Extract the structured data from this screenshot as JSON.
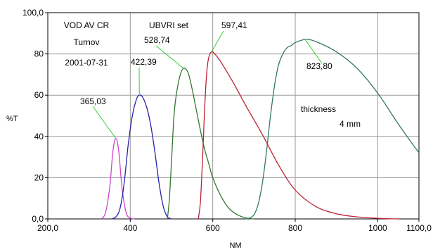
{
  "chart_data": {
    "type": "line",
    "xlabel": "NM",
    "ylabel": "%T",
    "xlim": [
      200,
      1100
    ],
    "ylim": [
      0,
      100
    ],
    "x_ticks": [
      {
        "value": 200,
        "label": "200,0"
      },
      {
        "value": 400,
        "label": "400"
      },
      {
        "value": 600,
        "label": "600"
      },
      {
        "value": 800,
        "label": "800"
      },
      {
        "value": 1000,
        "label": "1000"
      },
      {
        "value": 1100,
        "label": "1100,0"
      }
    ],
    "y_ticks": [
      {
        "value": 0,
        "label": "0,0"
      },
      {
        "value": 20,
        "label": "20"
      },
      {
        "value": 40,
        "label": "40"
      },
      {
        "value": 60,
        "label": "60"
      },
      {
        "value": 80,
        "label": "80"
      },
      {
        "value": 100,
        "label": "100,0"
      }
    ],
    "grid": {
      "x": true,
      "y": true
    },
    "annotations": {
      "info": [
        "VOD AV CR",
        "Turnov",
        "2001-07-31"
      ],
      "set_label": "UBVRI set",
      "thickness_label": "thickness",
      "thickness_value": "4 mm"
    },
    "series": [
      {
        "color": "#cc44cc",
        "peak_label": "365,03",
        "peak": [
          365,
          39
        ],
        "x": [
          330,
          340,
          350,
          358,
          365,
          372,
          380,
          390,
          400,
          410
        ],
        "y": [
          0,
          3,
          15,
          33,
          39,
          33,
          15,
          3,
          0.5,
          0
        ]
      },
      {
        "color": "#2222aa",
        "peak_label": "422,39",
        "peak": [
          422,
          60
        ],
        "x": [
          355,
          365,
          375,
          385,
          395,
          405,
          415,
          422,
          430,
          440,
          450,
          460,
          470,
          480,
          490,
          500
        ],
        "y": [
          0,
          1,
          5,
          17,
          36,
          50,
          58,
          60,
          59,
          54,
          45,
          32,
          17,
          6,
          1,
          0
        ]
      },
      {
        "color": "#337733",
        "peak_label": "528,74",
        "peak": [
          529,
          73
        ],
        "x": [
          490,
          495,
          500,
          505,
          510,
          520,
          529,
          540,
          550,
          560,
          570,
          580,
          590,
          600,
          620,
          640,
          660,
          680,
          700
        ],
        "y": [
          0,
          10,
          28,
          47,
          58,
          69,
          73,
          71,
          63,
          53,
          43,
          34,
          27,
          20,
          11,
          5,
          2,
          0.5,
          0
        ]
      },
      {
        "color": "#bb2233",
        "peak_label": "597,41",
        "peak": [
          597,
          81
        ],
        "x": [
          565,
          570,
          575,
          580,
          585,
          590,
          597,
          605,
          620,
          650,
          680,
          720,
          760,
          800,
          850,
          900,
          950,
          1000,
          1050
        ],
        "y": [
          0,
          8,
          28,
          52,
          70,
          78,
          81,
          80,
          76,
          66,
          55,
          41,
          26,
          14,
          6,
          2.5,
          1,
          0.3,
          0
        ]
      },
      {
        "color": "#337766",
        "peak_label": "823,80",
        "peak": [
          824,
          87
        ],
        "x": [
          680,
          690,
          700,
          710,
          720,
          730,
          740,
          750,
          760,
          770,
          780,
          790,
          800,
          824,
          850,
          900,
          950,
          1000,
          1050,
          1100
        ],
        "y": [
          0,
          0.5,
          2,
          7,
          17,
          32,
          50,
          65,
          75,
          80,
          83,
          84,
          85.5,
          87,
          86,
          81,
          73,
          61,
          46,
          32
        ]
      }
    ]
  }
}
